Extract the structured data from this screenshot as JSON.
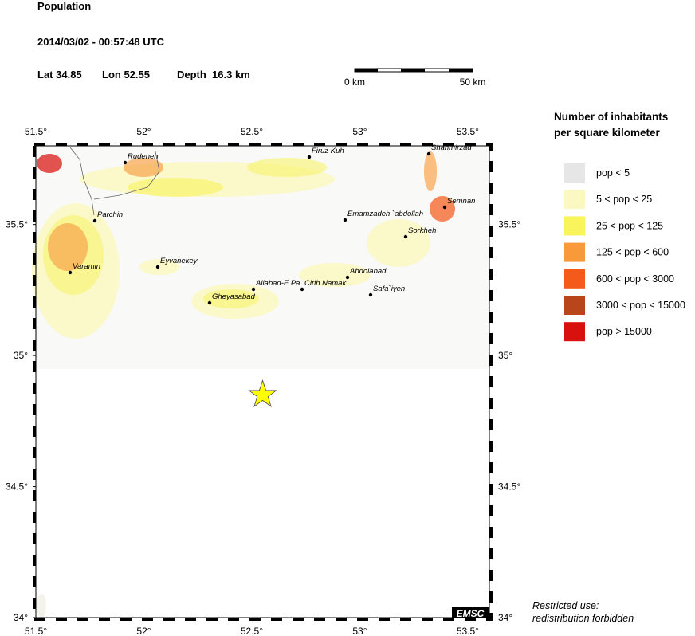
{
  "header": {
    "title": "Population",
    "datetime": "2014/03/02 - 00:57:48 UTC",
    "lat": {
      "label": "Lat",
      "value": 34.85
    },
    "lon": {
      "label": "Lon",
      "value": 52.55
    },
    "depth": "Depth  16.3 km"
  },
  "scale_bar": {
    "labels": [
      "0 km",
      "50 km"
    ]
  },
  "map": {
    "xlim": [
      51.5,
      53.6
    ],
    "ylim": [
      34,
      35.8
    ],
    "xticks": [
      {
        "value": 51.5,
        "label": "51.5°"
      },
      {
        "value": 52,
        "label": "52°"
      },
      {
        "value": 52.5,
        "label": "52.5°"
      },
      {
        "value": 53,
        "label": "53°"
      },
      {
        "value": 53.5,
        "label": "53.5°"
      }
    ],
    "yticks": [
      {
        "value": 34,
        "label": "34°"
      },
      {
        "value": 34.5,
        "label": "34.5°"
      },
      {
        "value": 35,
        "label": "35°"
      },
      {
        "value": 35.5,
        "label": "35.5°"
      }
    ],
    "cities": [
      "Rudehen",
      "Firuz Kuh",
      "Shahmirzad",
      "Parchin",
      "Semnan",
      "Emamzadeh `abdollah",
      "Sorkheh",
      "Eyvanekey",
      "Varamin",
      "Abdolabad",
      "Aliabad-E Pa",
      "Cirih Namak",
      "Safa`iyeh",
      "Gheyasabad"
    ],
    "epicenter_color": "#ffff00"
  },
  "legend": {
    "title": [
      "Number of inhabitants",
      "per square kilometer"
    ],
    "entries": [
      {
        "label": "pop < 5",
        "color": "#e6e6e6"
      },
      {
        "label": "5 < pop < 25",
        "color": "#fbf8c4"
      },
      {
        "label": "25 < pop < 125",
        "color": "#f9f45c"
      },
      {
        "label": "125 < pop < 600",
        "color": "#f89a3a"
      },
      {
        "label": "600 < pop < 3000",
        "color": "#f45a1a"
      },
      {
        "label": "3000 < pop < 15000",
        "color": "#b8461a"
      },
      {
        "label": "pop > 15000",
        "color": "#d8100e"
      }
    ]
  },
  "footer": {
    "notice": [
      "Restricted use:",
      "redistribution forbidden"
    ],
    "logo": "EMSC"
  }
}
